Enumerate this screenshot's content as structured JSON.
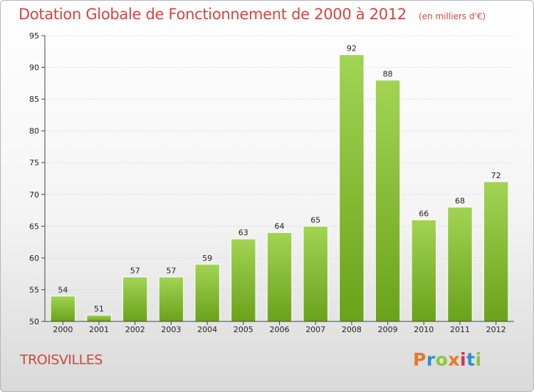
{
  "header": {
    "title": "Dotation Globale de Fonctionnement de 2000 à 2012",
    "subtitle": "(en milliers d'€)"
  },
  "footer": {
    "commune": "TROISVILLES",
    "logo_text": "Proxiti",
    "logo_colors": [
      "#e8772a",
      "#2f8fd0",
      "#8dc63f",
      "#e8772a",
      "#d6334a",
      "#2f8fd0",
      "#8dc63f"
    ]
  },
  "chart_data": {
    "type": "bar",
    "title": "Dotation Globale de Fonctionnement de 2000 à 2012",
    "subtitle": "(en milliers d'€)",
    "categories": [
      "2000",
      "2001",
      "2002",
      "2003",
      "2004",
      "2005",
      "2006",
      "2007",
      "2008",
      "2009",
      "2010",
      "2011",
      "2012"
    ],
    "values": [
      54,
      51,
      57,
      57,
      59,
      63,
      64,
      65,
      92,
      88,
      66,
      68,
      72
    ],
    "ylim": [
      50,
      95
    ],
    "yticks": [
      50,
      55,
      60,
      65,
      70,
      75,
      80,
      85,
      90,
      95
    ],
    "grid": true,
    "bar_color_top": "#a2d453",
    "bar_color_bottom": "#6aa21a"
  }
}
